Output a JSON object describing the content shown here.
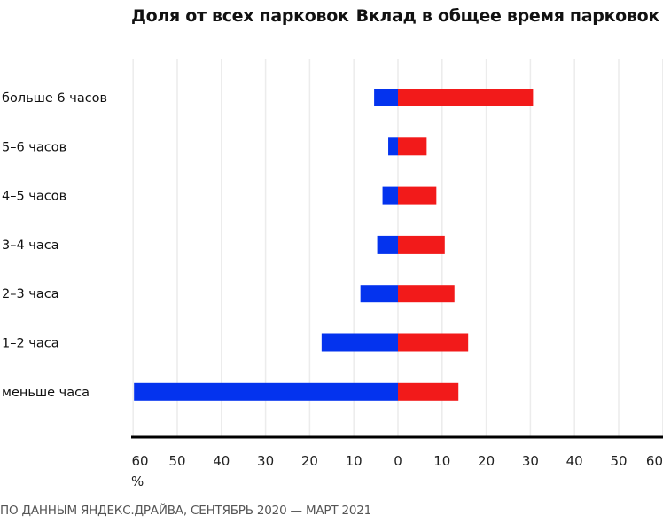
{
  "chart_data": {
    "type": "bar",
    "orientation": "horizontal-diverging",
    "left_title": "Доля от всех парковок",
    "right_title": "Вклад в общее время парковок",
    "categories": [
      "больше 6 часов",
      "5–6 часов",
      "4–5 часов",
      "3–4 часа",
      "2–3 часа",
      "1–2 часа",
      "меньше часа"
    ],
    "series": [
      {
        "name": "Доля от всех парковок",
        "side": "left",
        "color": "#0433ee",
        "values": [
          5.4,
          2.2,
          3.5,
          4.7,
          8.5,
          17.3,
          59.8
        ]
      },
      {
        "name": "Вклад в общее время парковок",
        "side": "right",
        "color": "#f21a1a",
        "values": [
          30.6,
          6.5,
          8.7,
          10.6,
          12.8,
          15.9,
          13.7
        ]
      }
    ],
    "xlim_left": [
      60,
      0
    ],
    "xlim_right": [
      0,
      60
    ],
    "ticks_left": [
      "60",
      "50",
      "40",
      "30",
      "20",
      "10"
    ],
    "ticks_right": [
      "0",
      "10",
      "20",
      "30",
      "40",
      "50",
      "60"
    ],
    "unit": "%",
    "grid": true,
    "footnote": "ПО ДАННЫМ ЯНДЕКС.ДРАЙВА, СЕНТЯБРЬ 2020 — МАРТ 2021"
  }
}
